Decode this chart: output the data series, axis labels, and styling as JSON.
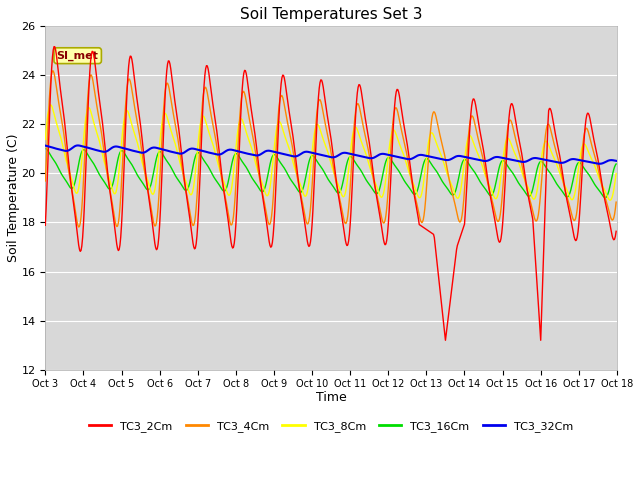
{
  "title": "Soil Temperatures Set 3",
  "xlabel": "Time",
  "ylabel": "Soil Temperature (C)",
  "ylim": [
    12,
    26
  ],
  "series_colors": {
    "TC3_2Cm": "#ff0000",
    "TC3_4Cm": "#ff8800",
    "TC3_8Cm": "#ffff00",
    "TC3_16Cm": "#00dd00",
    "TC3_32Cm": "#0000ee"
  },
  "x_tick_labels": [
    "Oct 3",
    "Oct 4",
    "Oct 5",
    "Oct 6",
    "Oct 7",
    "Oct 8",
    "Oct 9",
    "Oct 10",
    "Oct 11",
    "Oct 12",
    "Oct 13",
    "Oct 14",
    "Oct 15",
    "Oct 16",
    "Oct 17",
    "Oct 18"
  ],
  "annotation": "SI_met",
  "bg_color": "#d8d8d8",
  "fig_bg": "#ffffff",
  "grid_color": "#ffffff",
  "lw": 1.0
}
